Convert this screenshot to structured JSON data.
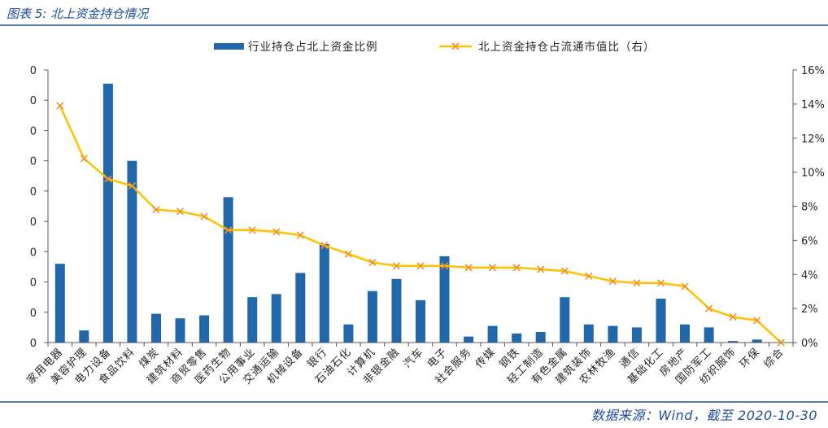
{
  "footer": {
    "source": "数据来源：Wind，截至 2020-10-30"
  },
  "colors": {
    "accent": "#1f4e96",
    "bar": "#2167ac",
    "line": "#ffc000",
    "marker": "#f0902a",
    "axis": "#595959"
  },
  "chart_data": {
    "type": "bar",
    "title": "图表 5: 北上资金持仓情况",
    "legend": "top-center",
    "grid": false,
    "categories": [
      "家用电器",
      "美容护理",
      "电力设备",
      "食品饮料",
      "煤炭",
      "建筑材料",
      "商贸零售",
      "医药生物",
      "公用事业",
      "交通运输",
      "机械设备",
      "银行",
      "石油石化",
      "计算机",
      "非银金融",
      "汽车",
      "电子",
      "社会服务",
      "传媒",
      "钢铁",
      "轻工制造",
      "有色金属",
      "建筑装饰",
      "农林牧渔",
      "通信",
      "基础化工",
      "房地产",
      "国防军工",
      "纺织服饰",
      "环保",
      "综合"
    ],
    "series": [
      {
        "name": "行业持仓占北上资金比例",
        "type": "bar",
        "axis": "left",
        "values": [
          0.052,
          0.008,
          0.171,
          0.12,
          0.019,
          0.016,
          0.018,
          0.096,
          0.03,
          0.032,
          0.046,
          0.065,
          0.012,
          0.034,
          0.042,
          0.028,
          0.057,
          0.004,
          0.011,
          0.006,
          0.007,
          0.03,
          0.012,
          0.011,
          0.01,
          0.029,
          0.012,
          0.01,
          0.001,
          0.002,
          0.0
        ]
      },
      {
        "name": "北上资金持仓占流通市值比（右）",
        "type": "line",
        "axis": "right",
        "marker": "x",
        "values": [
          13.9,
          10.8,
          9.6,
          9.2,
          7.8,
          7.7,
          7.4,
          6.6,
          6.6,
          6.5,
          6.3,
          5.7,
          5.2,
          4.7,
          4.5,
          4.5,
          4.5,
          4.4,
          4.4,
          4.4,
          4.3,
          4.2,
          3.9,
          3.6,
          3.5,
          3.5,
          3.3,
          2.0,
          1.5,
          1.3,
          0.0
        ]
      }
    ],
    "y_left": {
      "ylim": [
        0,
        0.18
      ],
      "tick_labels": [
        "0",
        "0",
        "0",
        "0",
        "0",
        "0",
        "0",
        "0",
        "0",
        "0"
      ]
    },
    "y_right": {
      "ylim": [
        0,
        16
      ],
      "tick_labels": [
        "0%",
        "2%",
        "4%",
        "6%",
        "8%",
        "10%",
        "12%",
        "14%",
        "16%"
      ]
    }
  }
}
